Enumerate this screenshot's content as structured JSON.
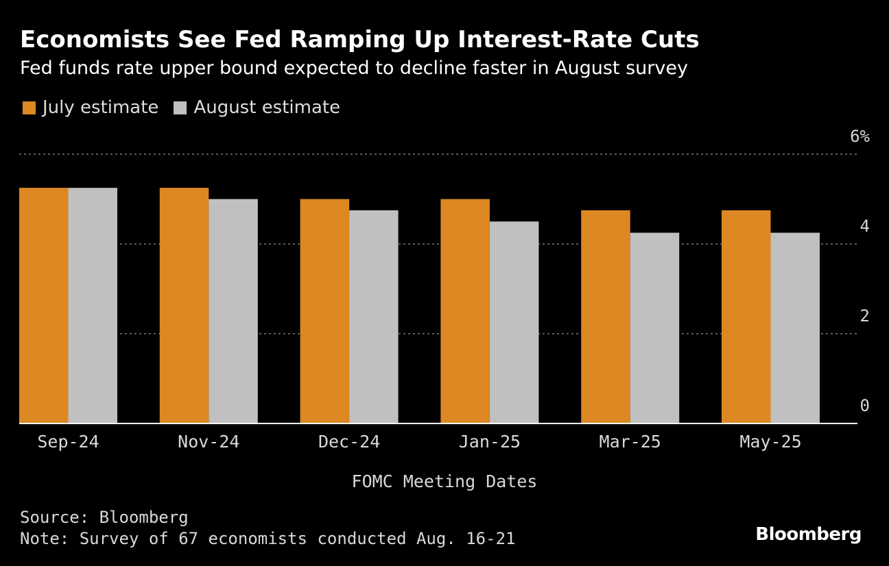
{
  "title": "Economists See Fed Ramping Up Interest-Rate Cuts",
  "subtitle": "Fed funds rate upper bound expected to decline faster in August survey",
  "legend": [
    {
      "label": "July estimate",
      "color": "#dd8823"
    },
    {
      "label": "August estimate",
      "color": "#c0c0c0"
    }
  ],
  "footer": {
    "source": "Source: Bloomberg",
    "note": "Note: Survey of 67 economists conducted Aug. 16-21",
    "logo": "Bloomberg"
  },
  "chart_data": {
    "type": "bar",
    "title": "Economists See Fed Ramping Up Interest-Rate Cuts",
    "subtitle": "Fed funds rate upper bound expected to decline faster in August survey",
    "xlabel": "FOMC Meeting Dates",
    "ylabel": "",
    "categories": [
      "Sep-24",
      "Nov-24",
      "Dec-24",
      "Jan-25",
      "Mar-25",
      "May-25"
    ],
    "series": [
      {
        "name": "July estimate",
        "color": "#dd8823",
        "values": [
          5.25,
          5.25,
          5.0,
          5.0,
          4.75,
          4.75
        ]
      },
      {
        "name": "August estimate",
        "color": "#c0c0c0",
        "values": [
          5.25,
          5.0,
          4.75,
          4.5,
          4.25,
          4.25
        ]
      }
    ],
    "ylim": [
      0,
      6
    ],
    "yticks": [
      0,
      2,
      4,
      6
    ],
    "ytick_labels": [
      "0",
      "2",
      "4",
      "6%"
    ],
    "y_axis_position": "right",
    "grid": true,
    "legend_position": "top-left"
  }
}
